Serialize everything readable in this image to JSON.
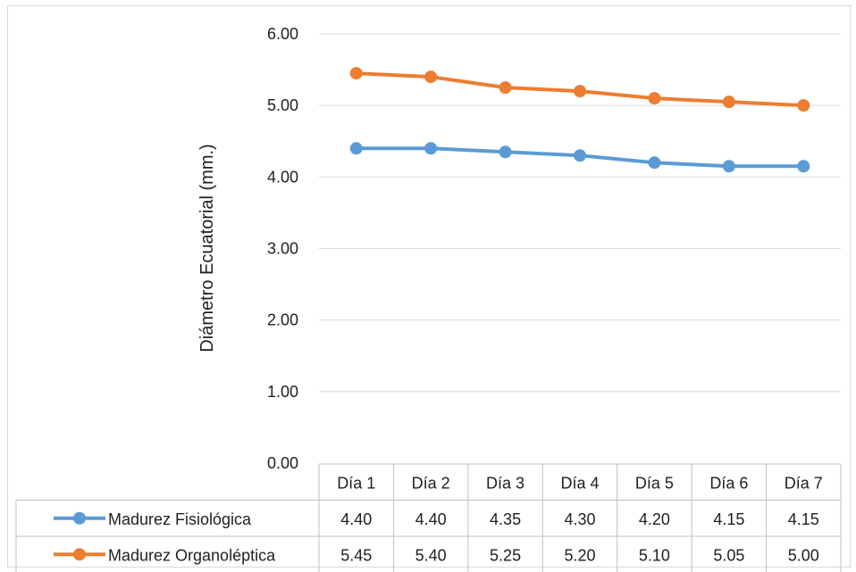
{
  "chart_data": {
    "type": "line",
    "title": "",
    "xlabel": "",
    "ylabel": "Diámetro Ecuatorial (mm.)",
    "ylim": [
      0,
      6
    ],
    "yticks": [
      "0.00",
      "1.00",
      "2.00",
      "3.00",
      "4.00",
      "5.00",
      "6.00"
    ],
    "grid": true,
    "legend": "data-table",
    "categories": [
      "Día 1",
      "Día 2",
      "Día 3",
      "Día 4",
      "Día 5",
      "Día 6",
      "Día 7"
    ],
    "series": [
      {
        "name": "Madurez Fisiológica",
        "color": "#5b9bd5",
        "values": [
          4.4,
          4.4,
          4.35,
          4.3,
          4.2,
          4.15,
          4.15
        ],
        "labels": [
          "4.40",
          "4.40",
          "4.35",
          "4.30",
          "4.20",
          "4.15",
          "4.15"
        ]
      },
      {
        "name": "Madurez Organoléptica",
        "color": "#ed7d31",
        "values": [
          5.45,
          5.4,
          5.25,
          5.2,
          5.1,
          5.05,
          5.0
        ],
        "labels": [
          "5.45",
          "5.40",
          "5.25",
          "5.20",
          "5.10",
          "5.05",
          "5.00"
        ]
      }
    ]
  }
}
